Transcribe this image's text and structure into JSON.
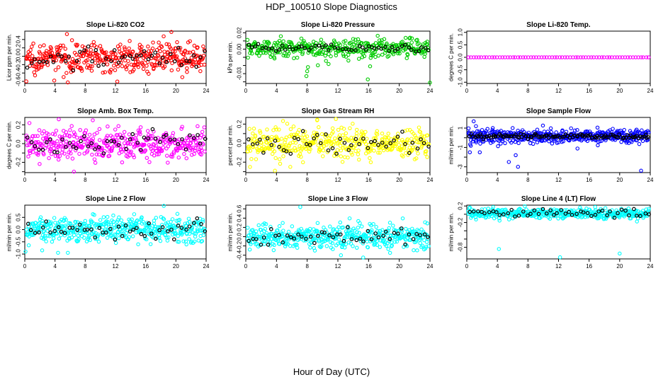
{
  "title": "HDP_100510  Slope Diagnostics",
  "xlabel": "Hour of Day (UTC)",
  "chart_data": [
    {
      "type": "scatter",
      "title": "Slope Li-820 CO2",
      "ylabel": "Licor ppm per min.",
      "color": "#ff0000",
      "xlim": [
        0,
        24
      ],
      "xticks": [
        0,
        4,
        8,
        12,
        16,
        20,
        24
      ],
      "ylim": [
        -0.65,
        0.6
      ],
      "yticks": [
        -0.6,
        -0.4,
        -0.2,
        0.0,
        0.2,
        0.4
      ],
      "yticklabels": [
        "-0.6",
        "-0.4",
        "-0.2",
        "0.0",
        "0.2",
        "0.4"
      ],
      "center": -0.03,
      "spread": 0.17,
      "black_spread": 0.11,
      "n_points": 420,
      "n_black": 48,
      "outliers": [
        [
          19.4,
          0.58
        ],
        [
          0.2,
          -0.6
        ],
        [
          3.9,
          -0.58
        ]
      ]
    },
    {
      "type": "scatter",
      "title": "Slope Li-820 Pressure",
      "ylabel": "kPa per min.",
      "color": "#00cc00",
      "xlim": [
        0,
        24
      ],
      "xticks": [
        0,
        4,
        8,
        12,
        16,
        20,
        24
      ],
      "ylim": [
        -0.042,
        0.022
      ],
      "yticks": [
        -0.04,
        -0.03,
        -0.02,
        -0.01,
        0.0,
        0.01,
        0.02
      ],
      "yticklabels": [
        "",
        "-0.03",
        "",
        "",
        "0.00",
        "",
        "0.02"
      ],
      "center": 0.0015,
      "spread": 0.006,
      "black_spread": 0.002,
      "n_points": 380,
      "n_black": 55,
      "outliers": [
        [
          7.9,
          -0.033
        ],
        [
          8.0,
          -0.027
        ],
        [
          15.9,
          -0.037
        ],
        [
          24.0,
          -0.041
        ],
        [
          8.1,
          -0.022
        ],
        [
          16.2,
          -0.021
        ]
      ]
    },
    {
      "type": "scatter",
      "title": "Slope Li-820 Temp.",
      "ylabel": "degrees C per min.",
      "color": "#ff00ff",
      "xlim": [
        0,
        24
      ],
      "xticks": [
        0,
        4,
        8,
        12,
        16,
        20,
        24
      ],
      "ylim": [
        -1.05,
        1.05
      ],
      "yticks": [
        -1.0,
        -0.5,
        0.0,
        0.5,
        1.0
      ],
      "yticklabels": [
        "-1.0",
        "-0.5",
        "0.0",
        "0.5",
        "1.0"
      ],
      "center": 0.0,
      "spread": 0.0,
      "black_spread": 0.0,
      "n_points": 70,
      "n_black": 0,
      "outliers": []
    },
    {
      "type": "scatter",
      "title": "Slope Amb. Box Temp.",
      "ylabel": "degrees C per min.",
      "color": "#ff00ff",
      "xlim": [
        0,
        24
      ],
      "xticks": [
        0,
        4,
        8,
        12,
        16,
        20,
        24
      ],
      "ylim": [
        -0.31,
        0.28
      ],
      "yticks": [
        -0.3,
        -0.2,
        -0.1,
        0.0,
        0.1,
        0.2
      ],
      "yticklabels": [
        "",
        "-0.2",
        "",
        "0.0",
        "",
        "0.2"
      ],
      "center": 0.0,
      "spread": 0.085,
      "black_spread": 0.06,
      "n_points": 420,
      "n_black": 48,
      "outliers": [
        [
          6.5,
          -0.3
        ],
        [
          4.5,
          0.26
        ],
        [
          9.0,
          0.25
        ]
      ]
    },
    {
      "type": "scatter",
      "title": "Slope Gas Stream RH",
      "ylabel": "percent per min.",
      "color": "#ffff00",
      "xlim": [
        0,
        24
      ],
      "xticks": [
        0,
        4,
        8,
        12,
        16,
        20,
        24
      ],
      "ylim": [
        -0.31,
        0.27
      ],
      "yticks": [
        -0.3,
        -0.2,
        -0.1,
        0.0,
        0.1,
        0.2
      ],
      "yticklabels": [
        "",
        "-0.2",
        "",
        "0.0",
        "",
        "0.2"
      ],
      "center": 0.0,
      "spread": 0.075,
      "black_spread": 0.06,
      "n_points": 420,
      "n_black": 48,
      "outliers": [
        [
          3.8,
          -0.29
        ],
        [
          5.8,
          -0.25
        ],
        [
          9.3,
          0.24
        ]
      ]
    },
    {
      "type": "scatter",
      "title": "Slope Sample Flow",
      "ylabel": "ml/min per min.",
      "color": "#0000ff",
      "xlim": [
        0,
        24
      ],
      "xticks": [
        0,
        4,
        8,
        12,
        16,
        20,
        24
      ],
      "ylim": [
        -3.6,
        2.1
      ],
      "yticks": [
        -3,
        -2,
        -1,
        0,
        1
      ],
      "yticklabels": [
        "-3",
        "",
        "-1",
        "",
        "1"
      ],
      "center": 0.15,
      "spread": 0.35,
      "black_spread": 0.12,
      "n_points": 450,
      "n_black": 110,
      "outliers": [
        [
          0.9,
          1.7
        ],
        [
          1.2,
          1.2
        ],
        [
          6.0,
          1.0
        ],
        [
          5.5,
          -2.5
        ],
        [
          6.7,
          -3.0
        ],
        [
          22.8,
          -3.4
        ],
        [
          1.7,
          -1.5
        ],
        [
          0.4,
          -1.5
        ],
        [
          2.0,
          0.8
        ],
        [
          3.4,
          1.0
        ],
        [
          6.4,
          -1.8
        ]
      ]
    },
    {
      "type": "scatter",
      "title": "Slope Line 2 Flow",
      "ylabel": "ml/min per min.",
      "color": "#00ffff",
      "xlim": [
        0,
        24
      ],
      "xticks": [
        0,
        4,
        8,
        12,
        16,
        20,
        24
      ],
      "ylim": [
        -1.2,
        1.0
      ],
      "yticks": [
        -1.0,
        -0.5,
        0.0,
        0.5
      ],
      "yticklabels": [
        "-1.0",
        "-0.5",
        "0.0",
        "0.5"
      ],
      "center": 0.0,
      "spread": 0.26,
      "black_spread": 0.15,
      "n_points": 450,
      "n_black": 48,
      "outliers": [
        [
          18.4,
          0.97
        ],
        [
          5.7,
          -0.95
        ],
        [
          0.1,
          -0.9
        ],
        [
          4.4,
          -0.95
        ],
        [
          2.3,
          -0.85
        ]
      ]
    },
    {
      "type": "scatter",
      "title": "Slope Line 3 Flow",
      "ylabel": "ml/min per min.",
      "color": "#00ffff",
      "xlim": [
        0,
        24
      ],
      "xticks": [
        0,
        4,
        8,
        12,
        16,
        20,
        24
      ],
      "ylim": [
        -0.48,
        0.68
      ],
      "yticks": [
        -0.4,
        -0.2,
        0.0,
        0.2,
        0.4,
        0.6
      ],
      "yticklabels": [
        "-0.4",
        "-0.2",
        "0.0",
        "0.2",
        "0.4",
        "0.6"
      ],
      "center": 0.0,
      "spread": 0.13,
      "black_spread": 0.09,
      "n_points": 450,
      "n_black": 48,
      "outliers": [
        [
          7.1,
          0.64
        ],
        [
          9.0,
          -0.3
        ],
        [
          12.4,
          -0.4
        ],
        [
          15.3,
          -0.45
        ],
        [
          18.8,
          -0.35
        ]
      ]
    },
    {
      "type": "scatter",
      "title": "Slope Line 4 (LT) Flow",
      "ylabel": "ml/min per min.",
      "color": "#00ffff",
      "xlim": [
        0,
        24
      ],
      "xticks": [
        0,
        4,
        8,
        12,
        16,
        20,
        24
      ],
      "ylim": [
        -1.08,
        0.22
      ],
      "yticks": [
        -0.8,
        -0.6,
        -0.4,
        -0.2,
        0.0,
        0.2
      ],
      "yticklabels": [
        "-0.8",
        "",
        "",
        "-0.2",
        "",
        "0.2"
      ],
      "center": 0.02,
      "spread": 0.06,
      "black_spread": 0.05,
      "n_points": 420,
      "n_black": 48,
      "outliers": [
        [
          4.2,
          -0.84
        ],
        [
          12.2,
          -1.04
        ],
        [
          20.0,
          -0.95
        ]
      ]
    }
  ]
}
